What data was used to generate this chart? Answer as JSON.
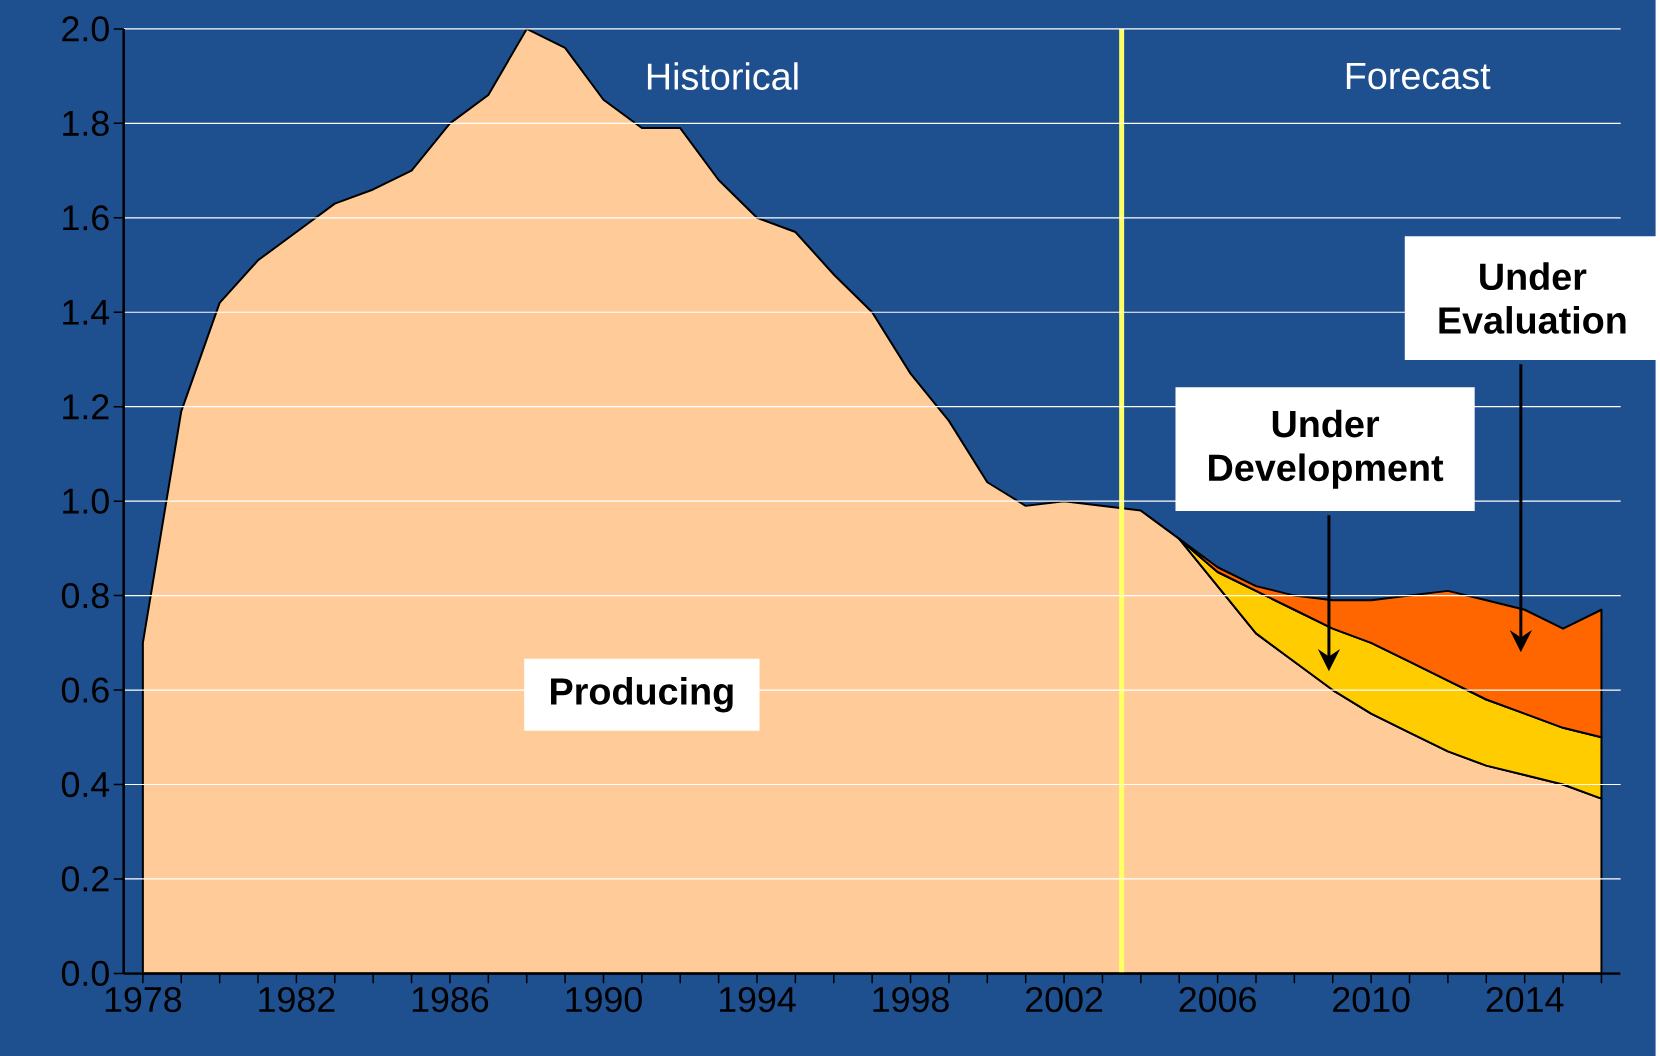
{
  "chart_data": {
    "type": "area",
    "stacked": true,
    "x": [
      1978,
      1979,
      1980,
      1981,
      1982,
      1983,
      1984,
      1985,
      1986,
      1987,
      1988,
      1989,
      1990,
      1991,
      1992,
      1993,
      1994,
      1995,
      1996,
      1997,
      1998,
      1999,
      2000,
      2001,
      2002,
      2003,
      2004,
      2005,
      2006,
      2007,
      2008,
      2009,
      2010,
      2011,
      2012,
      2013,
      2014,
      2015,
      2016
    ],
    "series": [
      {
        "name": "Producing",
        "color": "#ffcc99",
        "values": [
          0.7,
          1.19,
          1.42,
          1.51,
          1.57,
          1.63,
          1.66,
          1.7,
          1.8,
          1.86,
          2.0,
          1.96,
          1.85,
          1.79,
          1.79,
          1.68,
          1.6,
          1.57,
          1.48,
          1.4,
          1.27,
          1.17,
          1.04,
          0.99,
          1.0,
          0.99,
          0.98,
          0.92,
          0.82,
          0.72,
          0.66,
          0.6,
          0.55,
          0.51,
          0.47,
          0.44,
          0.42,
          0.4,
          0.37
        ]
      },
      {
        "name": "Under Development",
        "color": "#ffcc00",
        "values": [
          null,
          null,
          null,
          null,
          null,
          null,
          null,
          null,
          null,
          null,
          null,
          null,
          null,
          null,
          null,
          null,
          null,
          null,
          null,
          null,
          null,
          null,
          null,
          null,
          null,
          null,
          null,
          0,
          0.03,
          0.09,
          0.11,
          0.13,
          0.15,
          0.15,
          0.15,
          0.14,
          0.13,
          0.12,
          0.13
        ]
      },
      {
        "name": "Under Evaluation",
        "color": "#ff6600",
        "values": [
          null,
          null,
          null,
          null,
          null,
          null,
          null,
          null,
          null,
          null,
          null,
          null,
          null,
          null,
          null,
          null,
          null,
          null,
          null,
          null,
          null,
          null,
          null,
          null,
          null,
          null,
          null,
          0,
          0.01,
          0.01,
          0.03,
          0.06,
          0.09,
          0.14,
          0.19,
          0.21,
          0.22,
          0.21,
          0.27
        ]
      }
    ],
    "xlim": [
      1977.5,
      2016.5
    ],
    "ylim": [
      0,
      2.0
    ],
    "xticks": [
      {
        "value": 1978,
        "label": "1978"
      },
      {
        "value": 1979,
        "label": null
      },
      {
        "value": 1980,
        "label": null
      },
      {
        "value": 1981,
        "label": null
      },
      {
        "value": 1982,
        "label": "1982"
      },
      {
        "value": 1983,
        "label": null
      },
      {
        "value": 1984,
        "label": null
      },
      {
        "value": 1985,
        "label": null
      },
      {
        "value": 1986,
        "label": "1986"
      },
      {
        "value": 1987,
        "label": null
      },
      {
        "value": 1988,
        "label": null
      },
      {
        "value": 1989,
        "label": null
      },
      {
        "value": 1990,
        "label": "1990"
      },
      {
        "value": 1991,
        "label": null
      },
      {
        "value": 1992,
        "label": null
      },
      {
        "value": 1993,
        "label": null
      },
      {
        "value": 1994,
        "label": "1994"
      },
      {
        "value": 1995,
        "label": null
      },
      {
        "value": 1996,
        "label": null
      },
      {
        "value": 1997,
        "label": null
      },
      {
        "value": 1998,
        "label": "1998"
      },
      {
        "value": 1999,
        "label": null
      },
      {
        "value": 2000,
        "label": null
      },
      {
        "value": 2001,
        "label": null
      },
      {
        "value": 2002,
        "label": "2002"
      },
      {
        "value": 2003,
        "label": null
      },
      {
        "value": 2004,
        "label": null
      },
      {
        "value": 2005,
        "label": null
      },
      {
        "value": 2006,
        "label": "2006"
      },
      {
        "value": 2007,
        "label": null
      },
      {
        "value": 2008,
        "label": null
      },
      {
        "value": 2009,
        "label": null
      },
      {
        "value": 2010,
        "label": "2010"
      },
      {
        "value": 2011,
        "label": null
      },
      {
        "value": 2012,
        "label": null
      },
      {
        "value": 2013,
        "label": null
      },
      {
        "value": 2014,
        "label": "2014"
      },
      {
        "value": 2015,
        "label": null
      },
      {
        "value": 2016,
        "label": null
      }
    ],
    "yticks": [
      {
        "value": 0,
        "label": "0.0"
      },
      {
        "value": 0.2,
        "label": "0.2"
      },
      {
        "value": 0.4,
        "label": "0.4"
      },
      {
        "value": 0.6,
        "label": "0.6"
      },
      {
        "value": 0.8,
        "label": "0.8"
      },
      {
        "value": 1.0,
        "label": "1.0"
      },
      {
        "value": 1.2,
        "label": "1.2"
      },
      {
        "value": 1.4,
        "label": "1.4"
      },
      {
        "value": 1.6,
        "label": "1.6"
      },
      {
        "value": 1.8,
        "label": "1.8"
      },
      {
        "value": 2.0,
        "label": "2.0"
      }
    ],
    "grid": "y",
    "ref_lines": [
      {
        "axis": "x",
        "value": 2003.5,
        "color": "#ffff66"
      }
    ],
    "annotations": [
      "Historical",
      "Forecast"
    ]
  }
}
